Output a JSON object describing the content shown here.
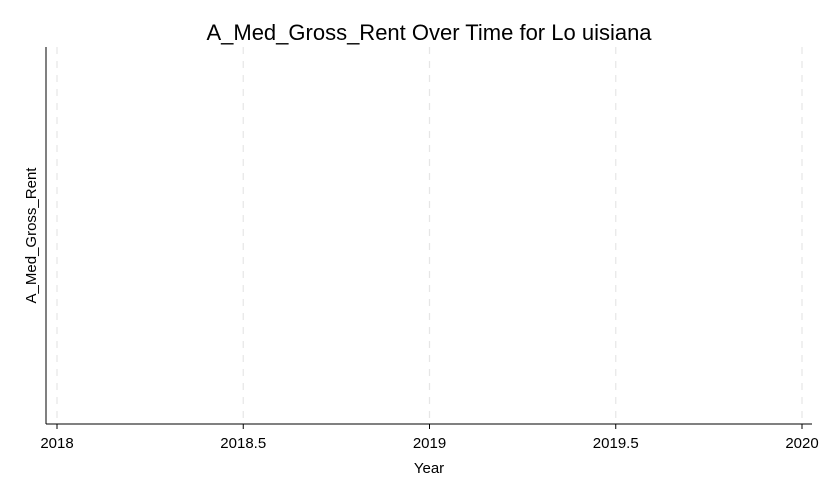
{
  "chart_data": {
    "type": "line",
    "title": "A_Med_Gross_Rent Over Time for Lo uisiana",
    "xlabel": "Year",
    "ylabel": "A_Med_Gross_Rent",
    "xlim": [
      2018,
      2020
    ],
    "x_ticks": [
      2018,
      2018.5,
      2019,
      2019.5,
      2020
    ],
    "x_tick_labels": [
      "2018",
      "2018.5",
      "2019",
      "2019.5",
      "2020"
    ],
    "y_ticks": [],
    "series": [],
    "grid": "vertical dashed",
    "legend": "none",
    "colors": {
      "grid": "#e6e6e6",
      "axis": "#000000",
      "background": "#ffffff"
    }
  }
}
